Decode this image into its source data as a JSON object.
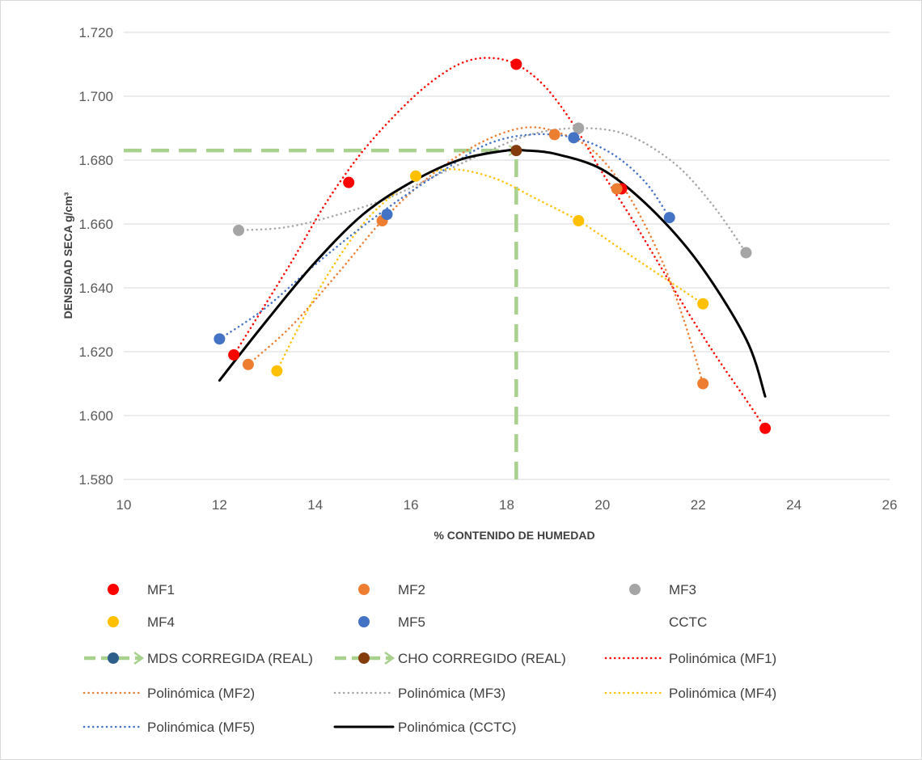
{
  "chart_data": {
    "type": "scatter",
    "xlabel": "% CONTENIDO DE HUMEDAD",
    "ylabel": "DENSIDAD SECA g/cm³",
    "xlim": [
      10,
      26
    ],
    "ylim": [
      1.58,
      1.72
    ],
    "xticks": [
      "10",
      "12",
      "14",
      "16",
      "18",
      "20",
      "22",
      "24",
      "26"
    ],
    "yticks": [
      "1.580",
      "1.600",
      "1.620",
      "1.640",
      "1.660",
      "1.680",
      "1.700",
      "1.720"
    ],
    "grid": "horizontal",
    "legend_position": "bottom",
    "series": [
      {
        "name": "MF1",
        "kind": "points",
        "color": "#ff0000",
        "x": [
          12.3,
          14.7,
          18.2,
          20.4,
          23.4
        ],
        "y": [
          1.619,
          1.673,
          1.71,
          1.671,
          1.596
        ]
      },
      {
        "name": "MF2",
        "kind": "points",
        "color": "#ed7d31",
        "x": [
          12.6,
          15.4,
          19.0,
          20.3,
          22.1
        ],
        "y": [
          1.616,
          1.661,
          1.688,
          1.671,
          1.61
        ]
      },
      {
        "name": "MF3",
        "kind": "points",
        "color": "#a5a5a5",
        "x": [
          12.4,
          19.5,
          23.0
        ],
        "y": [
          1.658,
          1.69,
          1.651
        ]
      },
      {
        "name": "MF4",
        "kind": "points",
        "color": "#ffc000",
        "x": [
          13.2,
          16.1,
          19.5,
          22.1
        ],
        "y": [
          1.614,
          1.675,
          1.661,
          1.635
        ]
      },
      {
        "name": "MF5",
        "kind": "points",
        "color": "#4472c4",
        "x": [
          12.0,
          15.5,
          19.4,
          21.4
        ],
        "y": [
          1.624,
          1.663,
          1.687,
          1.662
        ]
      },
      {
        "name": "CCTC",
        "kind": "none",
        "color": "#000000",
        "x": [],
        "y": []
      },
      {
        "name": "MDS CORREGIDA (REAL)",
        "kind": "arrow-line",
        "color": "#a9d18e",
        "marker_color": "#2e5f8a",
        "x": [
          10,
          18.2
        ],
        "y": [
          1.683,
          1.683
        ]
      },
      {
        "name": "CHO CORREGIDO (REAL)",
        "kind": "arrow-line",
        "color": "#a9d18e",
        "marker_color": "#843c0c",
        "x": [
          18.2,
          18.2
        ],
        "y": [
          1.58,
          1.683
        ]
      },
      {
        "name": "Polinómica (MF1)",
        "kind": "trend",
        "style": "dotted",
        "color": "#ff0000",
        "x": [
          12.3,
          12.8,
          13.5,
          14.2,
          14.9,
          15.6,
          16.3,
          17.0,
          17.6,
          18.2,
          18.8,
          19.4,
          20.0,
          20.6,
          21.2,
          21.8,
          22.4,
          23.0,
          23.4
        ],
        "y": [
          1.619,
          1.631,
          1.648,
          1.666,
          1.681,
          1.693,
          1.703,
          1.71,
          1.712,
          1.71,
          1.703,
          1.691,
          1.676,
          1.662,
          1.647,
          1.632,
          1.618,
          1.605,
          1.596
        ]
      },
      {
        "name": "Polinómica (MF2)",
        "kind": "trend",
        "style": "dotted",
        "color": "#ed7d31",
        "x": [
          12.6,
          13.5,
          14.5,
          15.4,
          16.4,
          17.4,
          18.3,
          19.0,
          19.8,
          20.5,
          21.2,
          21.7,
          22.1
        ],
        "y": [
          1.616,
          1.628,
          1.645,
          1.661,
          1.675,
          1.685,
          1.69,
          1.689,
          1.683,
          1.67,
          1.65,
          1.63,
          1.61
        ]
      },
      {
        "name": "Polinómica (MF3)",
        "kind": "trend",
        "style": "dotted",
        "color": "#a5a5a5",
        "x": [
          12.4,
          13.4,
          14.5,
          15.5,
          16.5,
          17.5,
          18.5,
          19.5,
          20.5,
          21.5,
          22.3,
          23.0
        ],
        "y": [
          1.658,
          1.659,
          1.663,
          1.668,
          1.675,
          1.682,
          1.688,
          1.69,
          1.688,
          1.679,
          1.666,
          1.651
        ]
      },
      {
        "name": "Polinómica (MF4)",
        "kind": "trend",
        "style": "dotted",
        "color": "#ffc000",
        "x": [
          13.2,
          13.7,
          14.3,
          15.0,
          15.7,
          16.4,
          17.0,
          17.8,
          18.6,
          19.5,
          20.4,
          21.2,
          22.1
        ],
        "y": [
          1.614,
          1.629,
          1.645,
          1.66,
          1.67,
          1.676,
          1.677,
          1.674,
          1.668,
          1.661,
          1.652,
          1.644,
          1.635
        ]
      },
      {
        "name": "Polinómica (MF5)",
        "kind": "trend",
        "style": "dotted",
        "color": "#4472c4",
        "x": [
          12.0,
          12.9,
          13.9,
          14.8,
          15.7,
          16.7,
          17.6,
          18.5,
          19.4,
          20.2,
          20.9,
          21.4
        ],
        "y": [
          1.624,
          1.633,
          1.646,
          1.657,
          1.667,
          1.677,
          1.685,
          1.688,
          1.687,
          1.682,
          1.673,
          1.662
        ]
      },
      {
        "name": "Polinómica (CCTC)",
        "kind": "trend",
        "style": "solid",
        "color": "#000000",
        "x": [
          12.0,
          13.0,
          14.0,
          15.0,
          16.0,
          17.0,
          18.0,
          18.4,
          19.0,
          20.0,
          21.0,
          22.0,
          23.0,
          23.4
        ],
        "y": [
          1.611,
          1.63,
          1.648,
          1.663,
          1.673,
          1.68,
          1.683,
          1.683,
          1.682,
          1.677,
          1.665,
          1.648,
          1.624,
          1.606
        ]
      }
    ]
  }
}
